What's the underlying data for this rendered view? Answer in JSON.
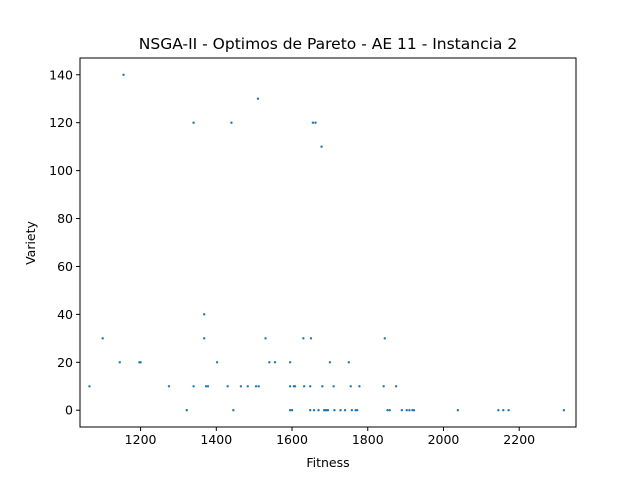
{
  "chart_data": {
    "type": "scatter",
    "title": "NSGA-II - Optimos de Pareto - AE 11 - Instancia 2",
    "xlabel": "Fitness",
    "ylabel": "Variety",
    "xlim": [
      1040,
      2350
    ],
    "ylim": [
      -7,
      147
    ],
    "xticks": [
      1200,
      1400,
      1600,
      1800,
      2000,
      2200
    ],
    "yticks": [
      0,
      20,
      40,
      60,
      80,
      100,
      120,
      140
    ],
    "grid": false,
    "marker_color": "#1f77b4",
    "points": [
      [
        1155,
        140
      ],
      [
        1510,
        130
      ],
      [
        1340,
        120
      ],
      [
        1440,
        120
      ],
      [
        1655,
        120
      ],
      [
        1662,
        120
      ],
      [
        1678,
        110
      ],
      [
        1368,
        40
      ],
      [
        1100,
        30
      ],
      [
        1368,
        30
      ],
      [
        1530,
        30
      ],
      [
        1630,
        30
      ],
      [
        1650,
        30
      ],
      [
        1845,
        30
      ],
      [
        1145,
        20
      ],
      [
        1197,
        20
      ],
      [
        1200,
        20
      ],
      [
        1402,
        20
      ],
      [
        1540,
        20
      ],
      [
        1555,
        20
      ],
      [
        1595,
        20
      ],
      [
        1700,
        20
      ],
      [
        1750,
        20
      ],
      [
        1065,
        10
      ],
      [
        1275,
        10
      ],
      [
        1340,
        10
      ],
      [
        1373,
        10
      ],
      [
        1378,
        10
      ],
      [
        1430,
        10
      ],
      [
        1465,
        10
      ],
      [
        1483,
        10
      ],
      [
        1505,
        10
      ],
      [
        1512,
        10
      ],
      [
        1595,
        10
      ],
      [
        1605,
        10
      ],
      [
        1608,
        10
      ],
      [
        1632,
        10
      ],
      [
        1648,
        10
      ],
      [
        1680,
        10
      ],
      [
        1710,
        10
      ],
      [
        1755,
        10
      ],
      [
        1778,
        10
      ],
      [
        1842,
        10
      ],
      [
        1875,
        10
      ],
      [
        1322,
        0
      ],
      [
        1445,
        0
      ],
      [
        1595,
        0
      ],
      [
        1600,
        0
      ],
      [
        1648,
        0
      ],
      [
        1658,
        0
      ],
      [
        1670,
        0
      ],
      [
        1685,
        0
      ],
      [
        1688,
        0
      ],
      [
        1692,
        0
      ],
      [
        1695,
        0
      ],
      [
        1712,
        0
      ],
      [
        1728,
        0
      ],
      [
        1740,
        0
      ],
      [
        1758,
        0
      ],
      [
        1768,
        0
      ],
      [
        1772,
        0
      ],
      [
        1852,
        0
      ],
      [
        1858,
        0
      ],
      [
        1890,
        0
      ],
      [
        1903,
        0
      ],
      [
        1910,
        0
      ],
      [
        1918,
        0
      ],
      [
        1922,
        0
      ],
      [
        2038,
        0
      ],
      [
        2145,
        0
      ],
      [
        2158,
        0
      ],
      [
        2172,
        0
      ],
      [
        2318,
        0
      ]
    ]
  }
}
